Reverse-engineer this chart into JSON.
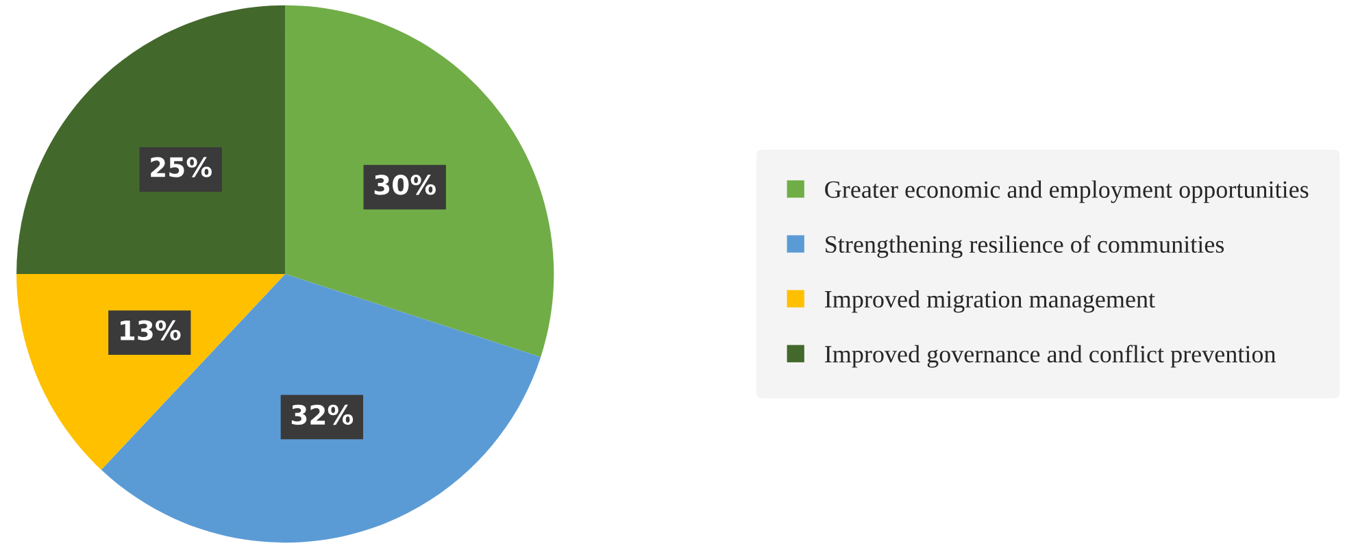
{
  "chart_data": {
    "type": "pie",
    "categories": [
      "Greater economic and employment opportunities",
      "Strengthening resilience of communities",
      "Improved migration management",
      "Improved governance and conflict prevention"
    ],
    "values": [
      30,
      32,
      13,
      25
    ],
    "colors": [
      "#70ad47",
      "#5b9bd5",
      "#ffc000",
      "#43682b"
    ],
    "value_labels": [
      "30%",
      "32%",
      "13%",
      "25%"
    ],
    "legend": "right"
  }
}
